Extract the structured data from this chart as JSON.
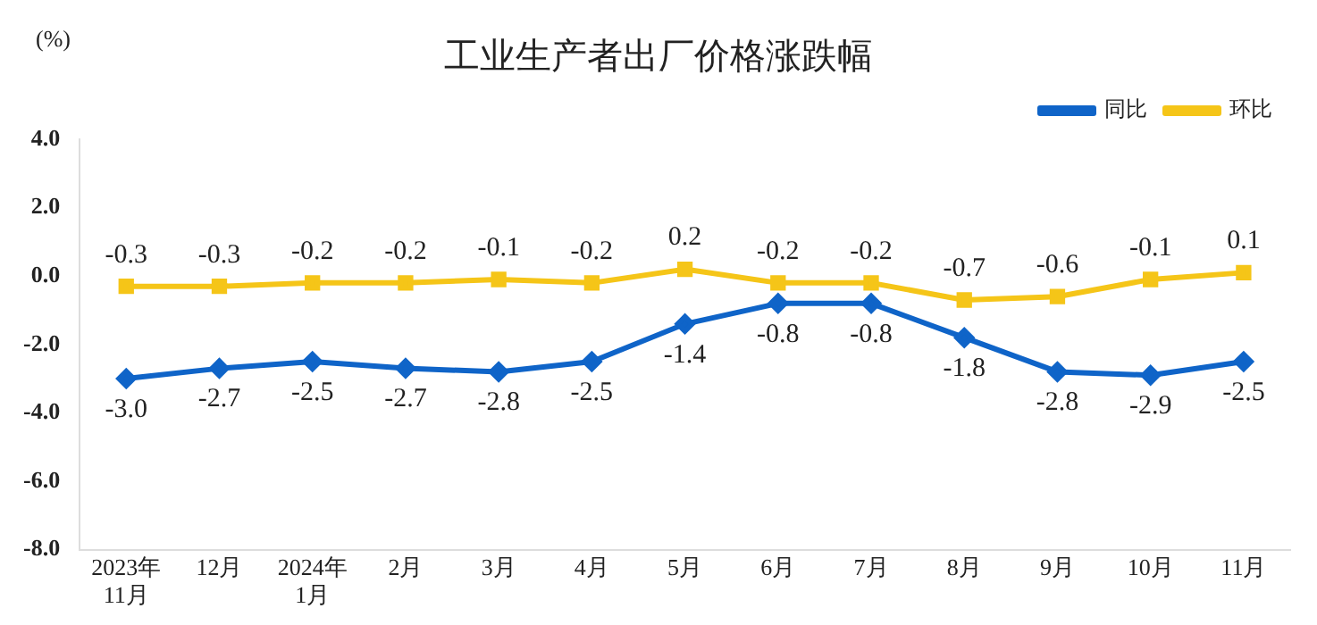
{
  "chart_data": {
    "type": "line",
    "title": "工业生产者出厂价格涨跌幅",
    "ylabel": "(%)",
    "categories": [
      "2023年\n11月",
      "12月",
      "2024年\n1月",
      "2月",
      "3月",
      "4月",
      "5月",
      "6月",
      "7月",
      "8月",
      "9月",
      "10月",
      "11月"
    ],
    "series": [
      {
        "name": "同比",
        "color": "#0f64c8",
        "marker": "diamond",
        "values": [
          -3.0,
          -2.7,
          -2.5,
          -2.7,
          -2.8,
          -2.5,
          -1.4,
          -0.8,
          -0.8,
          -1.8,
          -2.8,
          -2.9,
          -2.5
        ],
        "value_labels": [
          "-3.0",
          "-2.7",
          "-2.5",
          "-2.7",
          "-2.8",
          "-2.5",
          "-1.4",
          "-0.8",
          "-0.8",
          "-1.8",
          "-2.8",
          "-2.9",
          "-2.5"
        ]
      },
      {
        "name": "环比",
        "color": "#f5c518",
        "marker": "square",
        "values": [
          -0.3,
          -0.3,
          -0.2,
          -0.2,
          -0.1,
          -0.2,
          0.2,
          -0.2,
          -0.2,
          -0.7,
          -0.6,
          -0.1,
          0.1
        ],
        "value_labels": [
          "-0.3",
          "-0.3",
          "-0.2",
          "-0.2",
          "-0.1",
          "-0.2",
          "0.2",
          "-0.2",
          "-0.2",
          "-0.7",
          "-0.6",
          "-0.1",
          "0.1"
        ]
      }
    ],
    "ylim": [
      -8,
      4
    ],
    "yticks": [
      {
        "value": -8,
        "label": "-8.0"
      },
      {
        "value": -6,
        "label": "-6.0"
      },
      {
        "value": -4,
        "label": "-4.0"
      },
      {
        "value": -2,
        "label": "-2.0"
      },
      {
        "value": 0,
        "label": "0.0"
      },
      {
        "value": 2,
        "label": "2.0"
      },
      {
        "value": 4,
        "label": "4.0"
      }
    ],
    "grid": false,
    "legend": "top right",
    "line_style": "solid"
  }
}
